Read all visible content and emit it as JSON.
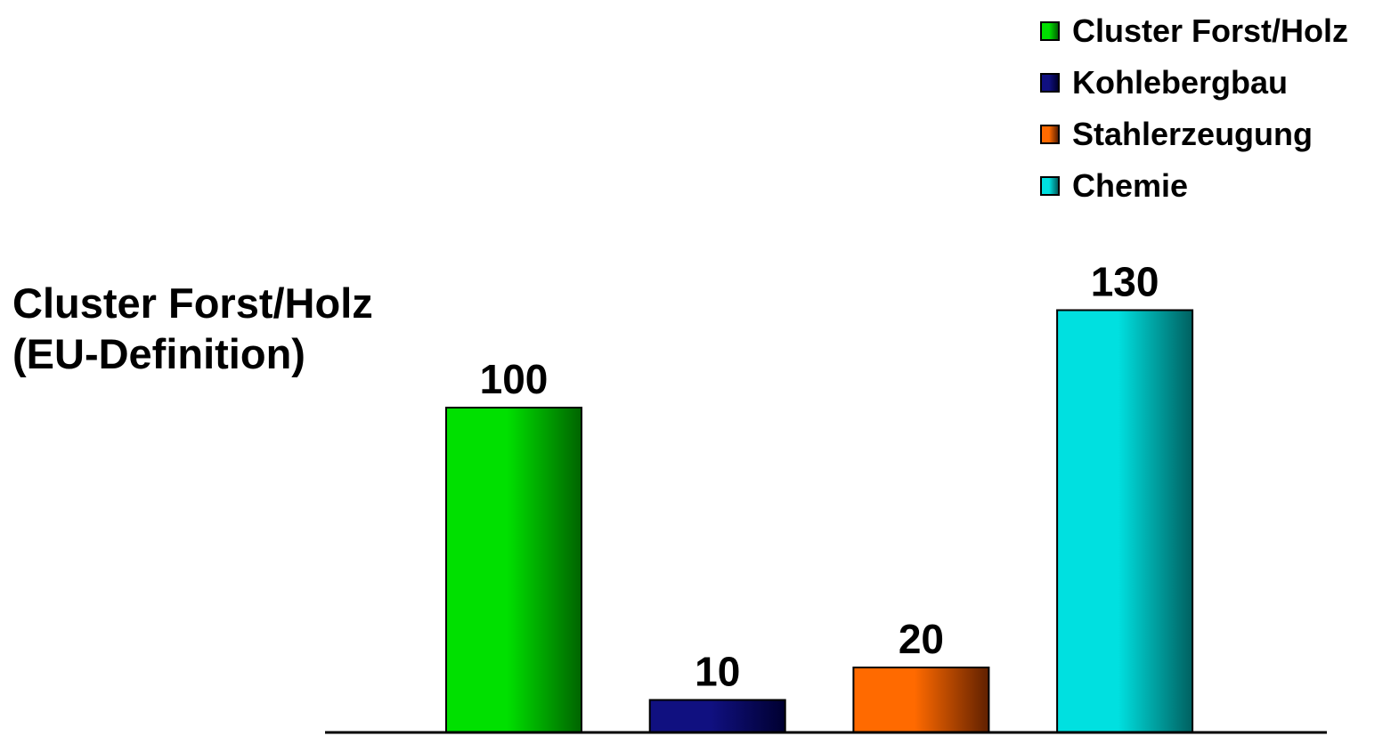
{
  "chart_data": {
    "type": "bar",
    "title_lines": [
      "Cluster Forst/Holz",
      "(EU-Definition)"
    ],
    "categories": [
      "Cluster Forst/Holz",
      "Kohlebergbau",
      "Stahlerzeugung",
      "Chemie"
    ],
    "values": [
      100,
      10,
      20,
      130
    ],
    "colors": [
      "#00e000",
      "#101080",
      "#ff6a00",
      "#00e0e0"
    ],
    "dark_colors": [
      "#006400",
      "#000030",
      "#602000",
      "#006060"
    ],
    "ylim": [
      0,
      160
    ],
    "legend_position": "top-right",
    "grid": false
  }
}
